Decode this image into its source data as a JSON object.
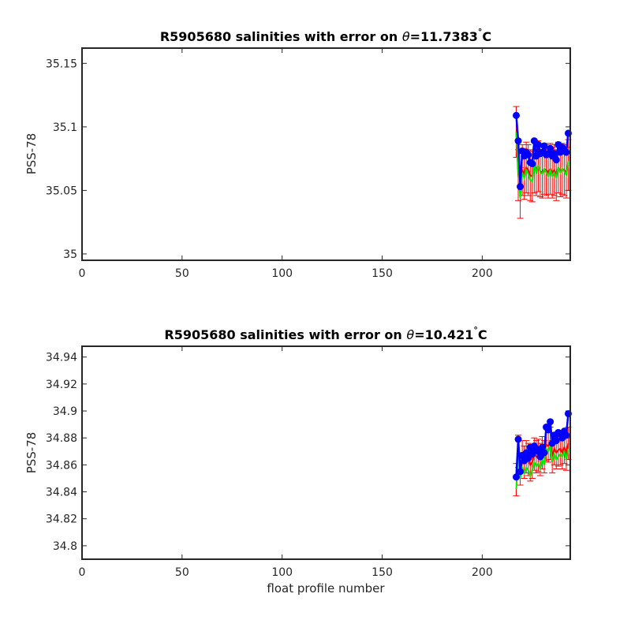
{
  "chart_data": [
    {
      "type": "line",
      "title": "R5905680 salinities with error on",
      "theta_symbol": "θ",
      "theta_value": "=11.7383",
      "degree_symbol": "°",
      "unit": "C",
      "ylabel": "PSS-78",
      "xlabel": "",
      "xlim": [
        0,
        244
      ],
      "ylim": [
        34.995,
        35.162
      ],
      "xticks": [
        0,
        50,
        100,
        150,
        200
      ],
      "xtick_labels": [
        "0",
        "50",
        "100",
        "150",
        "200"
      ],
      "yticks": [
        35,
        35.05,
        35.1,
        35.15
      ],
      "ytick_labels": [
        "35",
        "35.05",
        "35.1",
        "35.15"
      ],
      "grid": false,
      "series": [
        {
          "role": "raw",
          "color": "#0000ff",
          "x": [
            217,
            218,
            219,
            220,
            221,
            222,
            223,
            224,
            225,
            226,
            227,
            228,
            229,
            230,
            231,
            232,
            233,
            234,
            235,
            236,
            237,
            238,
            239,
            240,
            241,
            242,
            243
          ],
          "y": [
            35.109,
            35.089,
            35.053,
            35.081,
            35.077,
            35.08,
            35.078,
            35.072,
            35.071,
            35.089,
            35.077,
            35.086,
            35.079,
            35.08,
            35.085,
            35.078,
            35.079,
            35.083,
            35.077,
            35.079,
            35.074,
            35.086,
            35.08,
            35.084,
            35.081,
            35.08,
            35.095
          ]
        },
        {
          "role": "calibrated",
          "color": "#00ee00",
          "x": [
            217,
            218,
            219,
            220,
            221,
            222,
            223,
            224,
            225,
            226,
            227,
            228,
            229,
            230,
            231,
            232,
            233,
            234,
            235,
            236,
            237,
            238,
            239,
            240,
            241,
            242,
            243
          ],
          "y": [
            35.096,
            35.066,
            35.044,
            35.064,
            35.06,
            35.066,
            35.063,
            35.058,
            35.057,
            35.072,
            35.063,
            35.07,
            35.064,
            35.063,
            35.067,
            35.064,
            35.061,
            35.066,
            35.061,
            35.064,
            35.06,
            35.068,
            35.064,
            35.067,
            35.065,
            35.062,
            35.073
          ]
        },
        {
          "role": "mapped",
          "color": "#ff0000",
          "error": 0.02,
          "x": [
            217,
            218,
            219,
            220,
            221,
            222,
            223,
            224,
            225,
            226,
            227,
            228,
            229,
            230,
            231,
            232,
            233,
            234,
            235,
            236,
            237,
            238,
            239,
            240,
            241,
            242,
            243
          ],
          "y": [
            35.096,
            35.062,
            35.048,
            35.066,
            35.063,
            35.068,
            35.066,
            35.062,
            35.061,
            35.068,
            35.066,
            35.069,
            35.065,
            35.064,
            35.067,
            35.066,
            35.064,
            35.067,
            35.064,
            35.066,
            35.062,
            35.068,
            35.065,
            35.067,
            35.066,
            35.064,
            35.07
          ]
        }
      ]
    },
    {
      "type": "line",
      "title": "R5905680 salinities with error on",
      "theta_symbol": "θ",
      "theta_value": "=10.421",
      "degree_symbol": "°",
      "unit": "C",
      "ylabel": "PSS-78",
      "xlabel": "float profile number",
      "xlim": [
        0,
        244
      ],
      "ylim": [
        34.79,
        34.948
      ],
      "xticks": [
        0,
        50,
        100,
        150,
        200
      ],
      "xtick_labels": [
        "0",
        "50",
        "100",
        "150",
        "200"
      ],
      "yticks": [
        34.8,
        34.82,
        34.84,
        34.86,
        34.88,
        34.9,
        34.92,
        34.94
      ],
      "ytick_labels": [
        "34.8",
        "34.82",
        "34.84",
        "34.86",
        "34.88",
        "34.9",
        "34.92",
        "34.94"
      ],
      "grid": false,
      "series": [
        {
          "role": "raw",
          "color": "#0000ff",
          "x": [
            217,
            218,
            219,
            220,
            221,
            222,
            223,
            224,
            225,
            226,
            227,
            228,
            229,
            230,
            231,
            232,
            233,
            234,
            235,
            236,
            237,
            238,
            239,
            240,
            241,
            242,
            243
          ],
          "y": [
            34.851,
            34.879,
            34.855,
            34.867,
            34.863,
            34.869,
            34.865,
            34.873,
            34.868,
            34.874,
            34.872,
            34.87,
            34.866,
            34.873,
            34.869,
            34.888,
            34.886,
            34.892,
            34.876,
            34.882,
            34.878,
            34.884,
            34.883,
            34.88,
            34.885,
            34.882,
            34.898
          ]
        },
        {
          "role": "calibrated",
          "color": "#00ee00",
          "x": [
            217,
            218,
            219,
            220,
            221,
            222,
            223,
            224,
            225,
            226,
            227,
            228,
            229,
            230,
            231,
            232,
            233,
            234,
            235,
            236,
            237,
            238,
            239,
            240,
            241,
            242,
            243
          ],
          "y": [
            34.842,
            34.866,
            34.85,
            34.858,
            34.854,
            34.858,
            34.856,
            34.852,
            34.856,
            34.862,
            34.859,
            34.861,
            34.857,
            34.864,
            34.86,
            34.872,
            34.87,
            34.874,
            34.862,
            34.868,
            34.864,
            34.866,
            34.868,
            34.866,
            34.87,
            34.864,
            34.872
          ]
        },
        {
          "role": "mapped",
          "color": "#ff0000",
          "error": 0.012,
          "x": [
            217,
            218,
            219,
            220,
            221,
            222,
            223,
            224,
            225,
            226,
            227,
            228,
            229,
            230,
            231,
            232,
            233,
            234,
            235,
            236,
            237,
            238,
            239,
            240,
            241,
            242,
            243
          ],
          "y": [
            34.849,
            34.87,
            34.857,
            34.866,
            34.862,
            34.866,
            34.864,
            34.86,
            34.862,
            34.868,
            34.866,
            34.867,
            34.864,
            34.869,
            34.866,
            34.875,
            34.874,
            34.876,
            34.866,
            34.872,
            34.869,
            34.871,
            34.872,
            34.869,
            34.873,
            34.868,
            34.876
          ]
        }
      ]
    }
  ]
}
